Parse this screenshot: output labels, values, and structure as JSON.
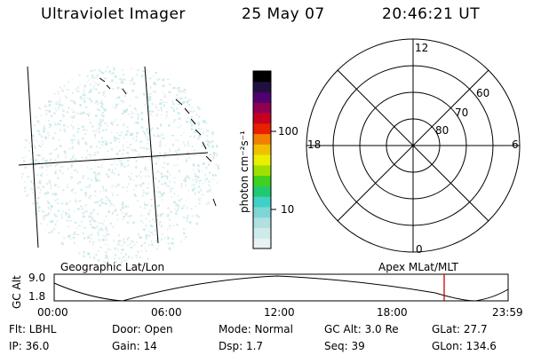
{
  "header": {
    "instrument": "Ultraviolet Imager",
    "date": "25 May 07",
    "time": "20:46:21 UT"
  },
  "colorbar": {
    "unit_label": "photon cm⁻²s⁻¹",
    "ticks": [
      "100",
      "10"
    ],
    "colors": [
      "#e8f2f2",
      "#cfeaea",
      "#b0e0e0",
      "#7fd6d6",
      "#40d0c8",
      "#20c870",
      "#40d020",
      "#a0e000",
      "#e8f000",
      "#f0c000",
      "#f08000",
      "#e82000",
      "#c80020",
      "#900050",
      "#500070",
      "#201040",
      "#000000"
    ]
  },
  "polar": {
    "mlt_labels": {
      "top": "12",
      "bottom": "0",
      "left": "18",
      "right": "6"
    },
    "lat_labels": [
      "60",
      "70",
      "80"
    ]
  },
  "timeline": {
    "left_title": "Geographic Lat/Lon",
    "right_title": "Apex MLat/MLT",
    "axis_label": "GC Alt",
    "y_ticks": [
      "9.0",
      "1.8"
    ],
    "x_ticks": [
      "00:00",
      "06:00",
      "12:00",
      "18:00",
      "23:59"
    ],
    "marker_color": "#cc0000"
  },
  "info": {
    "row1": {
      "flt": "Flt: LBHL",
      "door": "Door: Open",
      "mode": "Mode: Normal",
      "gcalt": "GC Alt: 3.0 Re",
      "glat": "GLat:  27.7"
    },
    "row2": {
      "ip": "IP: 36.0",
      "gain": "Gain: 14",
      "dsp": "Dsp:    1.7",
      "seq": "Seq: 39",
      "glon": "GLon: 134.6"
    }
  }
}
